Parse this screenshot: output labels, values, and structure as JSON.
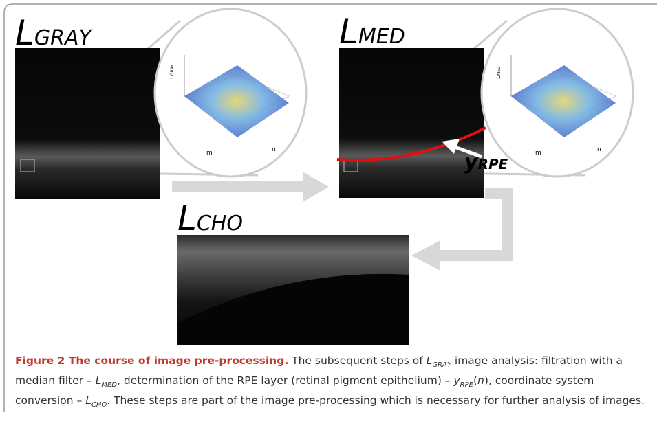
{
  "panels": {
    "gray": {
      "main": "L",
      "sub": "GRAY"
    },
    "med": {
      "main": "L",
      "sub": "MED"
    },
    "rpe": {
      "main": "y",
      "sub": "RPE"
    },
    "cho": {
      "main": "L",
      "sub": "CHO"
    }
  },
  "plots": [
    {
      "zlabel_main": "L",
      "zlabel_sub": "GRAY",
      "xlabel": "m",
      "ylabel": "n"
    },
    {
      "zlabel_main": "L",
      "zlabel_sub": "MED",
      "xlabel": "m",
      "ylabel": "n"
    }
  ],
  "caption": {
    "title": "Figure 2 The course of image pre-processing.",
    "segments": [
      " The subsequent steps of ",
      "L",
      "GRAY",
      " image analysis: filtration with a median filter – ",
      "L",
      "MED",
      ", determination of the RPE layer (retinal pigment epithelium) – ",
      "y",
      "RPE",
      "(",
      "n",
      "), coordinate system conversion – ",
      "L",
      "CHO",
      ". These steps are part of the image pre-processing which is necessary for further analysis of images."
    ]
  }
}
